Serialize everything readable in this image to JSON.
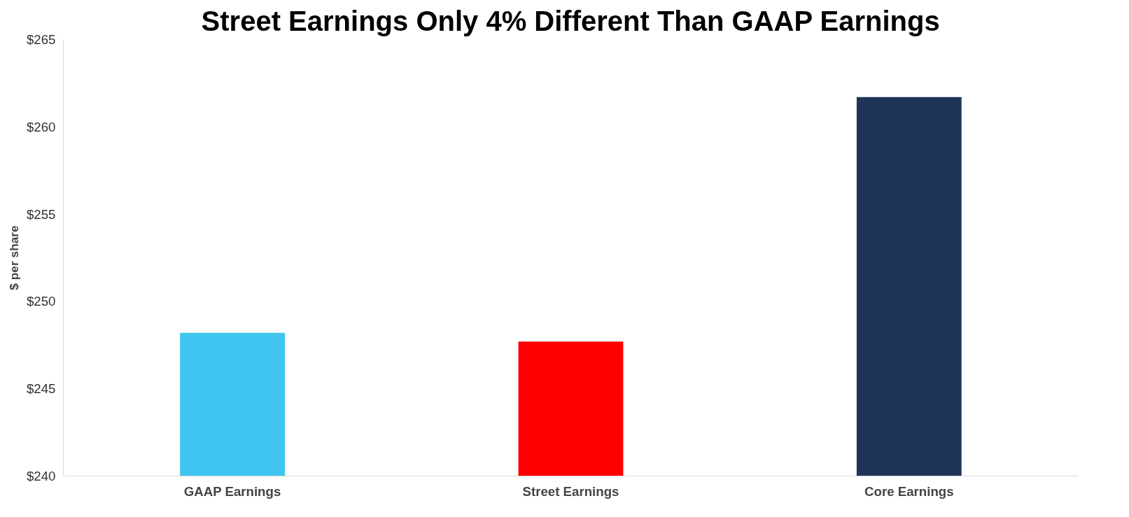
{
  "chart_data": {
    "type": "bar",
    "title": "Street Earnings Only 4% Different Than GAAP Earnings",
    "ylabel": "$ per share",
    "categories": [
      "GAAP Earnings",
      "Street Earnings",
      "Core Earnings"
    ],
    "values": [
      248.2,
      247.7,
      261.7
    ],
    "colors": [
      "#40c4f0",
      "#ff0000",
      "#1f3558"
    ],
    "ylim": [
      240,
      265
    ],
    "yticks": [
      {
        "value": 240,
        "label": "$240"
      },
      {
        "value": 245,
        "label": "$245"
      },
      {
        "value": 250,
        "label": "$250"
      },
      {
        "value": 255,
        "label": "$255"
      },
      {
        "value": 260,
        "label": "$260"
      },
      {
        "value": 265,
        "label": "$265"
      }
    ],
    "grid": false
  }
}
